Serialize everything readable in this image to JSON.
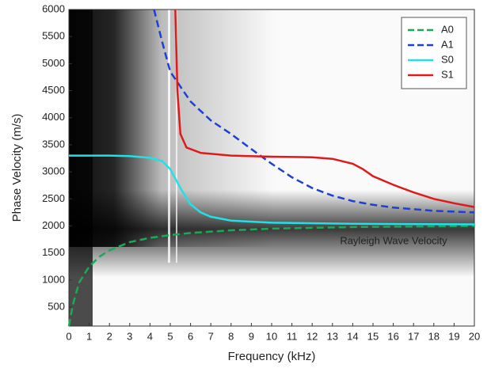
{
  "chart_data": {
    "type": "line",
    "xlabel": "Frequency (kHz)",
    "ylabel": "Phase Velocity (m/s)",
    "annotation": "Rayleigh Wave Velocity",
    "xlim": [
      0,
      20
    ],
    "ylim": [
      150,
      6000
    ],
    "xticks": [
      0,
      1,
      2,
      3,
      4,
      5,
      6,
      7,
      8,
      9,
      10,
      11,
      12,
      13,
      14,
      15,
      16,
      17,
      18,
      19,
      20
    ],
    "yticks": [
      500,
      1000,
      1500,
      2000,
      2500,
      3000,
      3500,
      4000,
      4500,
      5000,
      5500,
      6000
    ],
    "legend": "upper right",
    "series": [
      {
        "name": "A0",
        "color": "#1aaa55",
        "dashed": true,
        "x": [
          0,
          0.2,
          0.5,
          1,
          1.5,
          2,
          3,
          4,
          5,
          6,
          8,
          10,
          14,
          20
        ],
        "values": [
          150,
          550,
          950,
          1250,
          1430,
          1550,
          1700,
          1780,
          1830,
          1870,
          1920,
          1950,
          1980,
          2000
        ]
      },
      {
        "name": "A1",
        "color": "#1c3fd6",
        "dashed": true,
        "x": [
          4.2,
          4.6,
          5,
          6,
          7,
          8,
          9,
          10,
          11,
          12,
          13,
          14,
          15,
          16,
          18,
          20
        ],
        "values": [
          6000,
          5400,
          4850,
          4300,
          3950,
          3700,
          3420,
          3150,
          2900,
          2700,
          2560,
          2460,
          2390,
          2340,
          2280,
          2250
        ]
      },
      {
        "name": "S0",
        "color": "#22e0e8",
        "dashed": false,
        "x": [
          0,
          2,
          3,
          4,
          4.6,
          5,
          5.5,
          6,
          6.5,
          7,
          8,
          10,
          14,
          20
        ],
        "values": [
          3300,
          3300,
          3290,
          3260,
          3200,
          3050,
          2700,
          2400,
          2250,
          2170,
          2100,
          2060,
          2040,
          2030
        ]
      },
      {
        "name": "S1",
        "color": "#e01a1a",
        "dashed": false,
        "x": [
          5.25,
          5.35,
          5.5,
          5.8,
          6.5,
          8,
          10,
          12,
          13,
          14,
          14.5,
          15,
          16,
          17,
          18,
          19,
          20
        ],
        "values": [
          6000,
          4500,
          3700,
          3450,
          3350,
          3300,
          3280,
          3270,
          3240,
          3150,
          3050,
          2920,
          2760,
          2620,
          2500,
          2420,
          2350
        ]
      }
    ]
  }
}
